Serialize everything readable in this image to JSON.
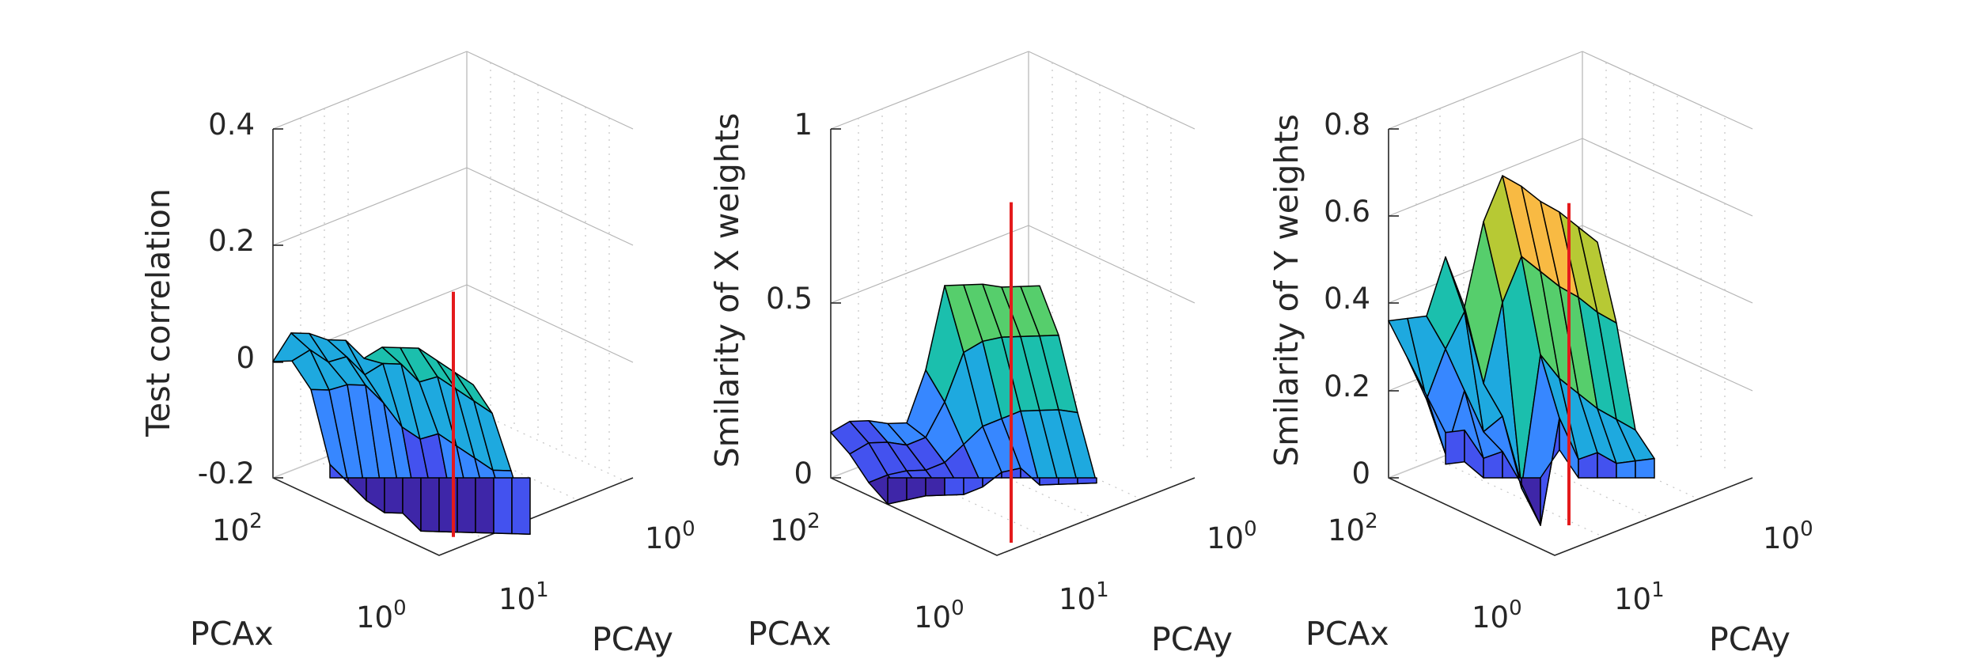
{
  "colors": {
    "parula": [
      "#3e26a8",
      "#4352ef",
      "#3787ff",
      "#1ea9df",
      "#1bbfad",
      "#56ce6c",
      "#b7c934",
      "#f8ba43",
      "#f3e21a"
    ],
    "marker_line": "#e41a1c"
  },
  "chart_data": [
    {
      "type": "surface",
      "name": "test-correlation",
      "zlabel": "Test correlation",
      "xlabel": "PCAx",
      "ylabel": "PCAy",
      "zlim": [
        -0.2,
        0.4
      ],
      "z_ticks": [
        "0.4",
        "0.2",
        "0",
        "-0.2"
      ],
      "x_ticks": [
        {
          "base": "10",
          "exp": "2"
        },
        {
          "base": "10",
          "exp": "0"
        }
      ],
      "y_ticks": [
        {
          "base": "10",
          "exp": "1"
        },
        {
          "base": "10",
          "exp": "0"
        }
      ],
      "grid": true,
      "rows": [
        [
          0.0,
          0.06,
          0.07,
          0.07,
          0.08,
          0.06,
          0.09,
          0.1,
          0.11,
          0.1,
          0.09,
          0.08
        ],
        [
          0.02,
          0.05,
          0.04,
          0.06,
          0.04,
          0.07,
          0.08,
          0.06,
          0.08,
          0.07,
          0.06,
          0.05
        ],
        [
          -0.01,
          0.0,
          0.02,
          0.03,
          0.01,
          -0.02,
          -0.03,
          -0.01,
          -0.02,
          -0.03,
          -0.04,
          -0.03
        ],
        [
          -0.12,
          -0.14,
          -0.16,
          -0.17,
          -0.16,
          -0.18,
          -0.17,
          -0.16,
          -0.15,
          -0.14,
          -0.13,
          -0.12
        ]
      ],
      "marker": {
        "z_top": 0.12,
        "z_bottom": -0.22
      }
    },
    {
      "type": "surface",
      "name": "similarity-x-weights",
      "zlabel": "Smilarity of X weights",
      "xlabel": "PCAx",
      "ylabel": "PCAy",
      "zlim": [
        0,
        1
      ],
      "z_ticks": [
        "1",
        "0.5",
        "0"
      ],
      "x_ticks": [
        {
          "base": "10",
          "exp": "2"
        },
        {
          "base": "10",
          "exp": "0"
        }
      ],
      "y_ticks": [
        {
          "base": "10",
          "exp": "1"
        },
        {
          "base": "10",
          "exp": "0"
        }
      ],
      "grid": true,
      "rows": [
        [
          0.13,
          0.18,
          0.2,
          0.21,
          0.23,
          0.4,
          0.66,
          0.68,
          0.7,
          0.71,
          0.73,
          0.75
        ],
        [
          0.1,
          0.15,
          0.17,
          0.18,
          0.22,
          0.34,
          0.5,
          0.55,
          0.58,
          0.6,
          0.62,
          0.64
        ],
        [
          0.05,
          0.09,
          0.12,
          0.14,
          0.18,
          0.25,
          0.32,
          0.36,
          0.4,
          0.42,
          0.44,
          0.45
        ],
        [
          0.02,
          0.05,
          0.08,
          0.1,
          0.12,
          0.16,
          0.22,
          0.25,
          0.22,
          0.24,
          0.26,
          0.28
        ]
      ],
      "marker": {
        "z_top": 0.79,
        "z_bottom": -0.05
      }
    },
    {
      "type": "surface",
      "name": "similarity-y-weights",
      "zlabel": "Smilarity of Y weights",
      "xlabel": "PCAx",
      "ylabel": "PCAy",
      "zlim": [
        0,
        0.8
      ],
      "z_ticks": [
        "0.8",
        "0.6",
        "0.4",
        "0.2",
        "0"
      ],
      "x_ticks": [
        {
          "base": "10",
          "exp": "2"
        },
        {
          "base": "10",
          "exp": "0"
        }
      ],
      "y_ticks": [
        {
          "base": "10",
          "exp": "1"
        },
        {
          "base": "10",
          "exp": "0"
        }
      ],
      "grid": true,
      "rows": [
        [
          0.36,
          0.38,
          0.4,
          0.55,
          0.45,
          0.66,
          0.78,
          0.77,
          0.75,
          0.74,
          0.72,
          0.7
        ],
        [
          0.3,
          0.22,
          0.35,
          0.45,
          0.3,
          0.5,
          0.62,
          0.6,
          0.58,
          0.57,
          0.55,
          0.54
        ],
        [
          0.24,
          0.12,
          0.28,
          0.2,
          0.25,
          0.1,
          0.42,
          0.38,
          0.36,
          0.34,
          0.33,
          0.32
        ],
        [
          0.18,
          0.2,
          0.15,
          0.18,
          0.12,
          0.04,
          0.3,
          0.22,
          0.25,
          0.24,
          0.26,
          0.28
        ]
      ],
      "marker": {
        "z_top": 0.63,
        "z_bottom": 0.0
      }
    }
  ]
}
